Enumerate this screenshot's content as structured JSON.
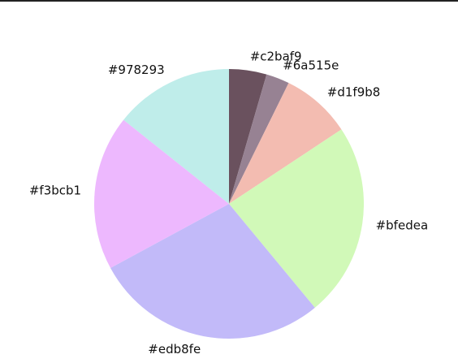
{
  "chart_data": {
    "type": "pie",
    "start_angle_deg": 90,
    "direction": "clockwise",
    "slices": [
      {
        "label": "#c2baf9",
        "value": 4.5,
        "color": "#6a515e"
      },
      {
        "label": "#6a515e",
        "value": 2.8,
        "color": "#978293"
      },
      {
        "label": "#d1f9b8",
        "value": 8.4,
        "color": "#f3bcb1"
      },
      {
        "label": "#bfedea",
        "value": 23.3,
        "color": "#d1f9b8"
      },
      {
        "label": "#edb8fe",
        "value": 28.1,
        "color": "#c2baf9"
      },
      {
        "label": "#f3bcb1",
        "value": 18.6,
        "color": "#edb8fe"
      },
      {
        "label": "#978293",
        "value": 14.3,
        "color": "#bfedea"
      }
    ]
  }
}
